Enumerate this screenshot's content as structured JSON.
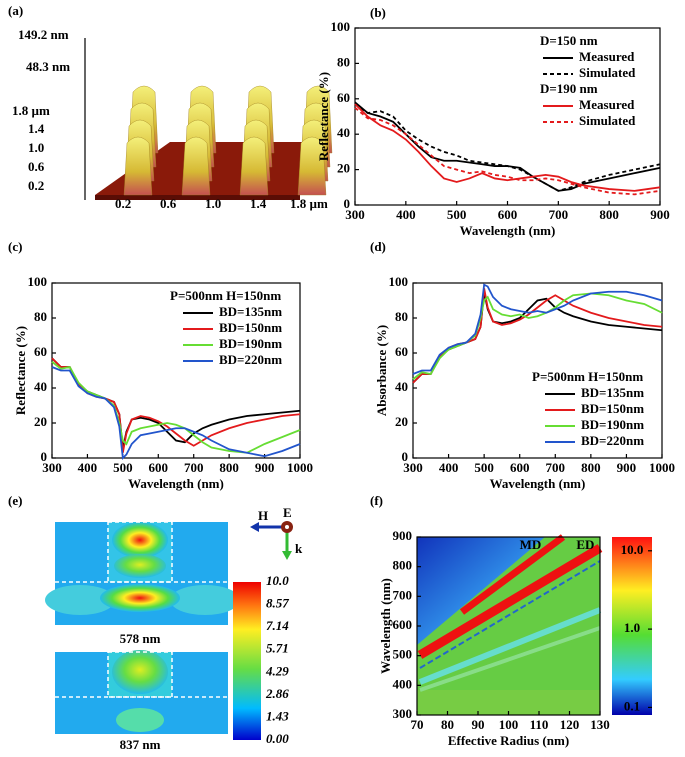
{
  "panel_a": {
    "panel": "(a)",
    "z_labels": [
      "149.2 nm",
      "48.3 nm"
    ],
    "y_labels": [
      "1.8 µm",
      "1.4",
      "1.0",
      "0.6",
      "0.2"
    ],
    "x_labels": [
      "0.2",
      "0.6",
      "1.0",
      "1.4",
      "1.8 µm"
    ]
  },
  "panel_e": {
    "panel": "(e)",
    "captions": [
      "578 nm",
      "837 nm"
    ],
    "colorbar_labels": [
      "10.0",
      "8.57",
      "7.14",
      "5.71",
      "4.29",
      "2.86",
      "1.43",
      "0.00"
    ],
    "axis_labels": [
      "H",
      "E",
      "k"
    ]
  },
  "chart_data": [
    {
      "type": "line",
      "panel": "(b)",
      "xlabel": "Wavelength (nm)",
      "ylabel": "Reflectance (%)",
      "x": [
        300,
        325,
        350,
        375,
        400,
        425,
        450,
        475,
        500,
        525,
        550,
        575,
        600,
        625,
        650,
        675,
        700,
        725,
        750,
        800,
        850,
        900
      ],
      "series": [
        {
          "name": "Measured",
          "group": "D=150 nm",
          "color": "#000000",
          "linestyle": "solid",
          "values": [
            58,
            52,
            50,
            47,
            40,
            33,
            27,
            25,
            25,
            24,
            23,
            22,
            22,
            21,
            16,
            12,
            8,
            9,
            12,
            15,
            18,
            21
          ]
        },
        {
          "name": "Simulated",
          "color": "#000000",
          "linestyle": "dashed",
          "values": [
            57,
            52,
            53,
            50,
            42,
            37,
            33,
            30,
            28,
            25,
            24,
            23,
            22,
            20,
            16,
            12,
            8,
            10,
            13,
            17,
            20,
            23
          ]
        },
        {
          "name": "Measured",
          "group": "D=190 nm",
          "color": "#e31a1c",
          "linestyle": "solid",
          "values": [
            57,
            50,
            45,
            42,
            37,
            30,
            22,
            15,
            13,
            15,
            18,
            15,
            14,
            15,
            16,
            17,
            16,
            13,
            11,
            9,
            8,
            10
          ]
        },
        {
          "name": "Simulated",
          "color": "#e31a1c",
          "linestyle": "dashed",
          "values": [
            55,
            49,
            48,
            45,
            40,
            34,
            28,
            22,
            20,
            18,
            19,
            17,
            16,
            14,
            14,
            15,
            14,
            12,
            10,
            7,
            6,
            8
          ]
        }
      ],
      "xlim": [
        300,
        900
      ],
      "xticks": [
        300,
        400,
        500,
        600,
        700,
        800,
        900
      ],
      "ylim": [
        0,
        100
      ],
      "yticks": [
        0,
        20,
        40,
        60,
        80,
        100
      ],
      "legend": "upper right"
    },
    {
      "type": "line",
      "panel": "(c)",
      "xlabel": "Wavelength (nm)",
      "ylabel": "Reflectance (%)",
      "annotation": "P=500nm H=150nm",
      "x": [
        300,
        325,
        350,
        375,
        400,
        425,
        450,
        475,
        490,
        500,
        510,
        525,
        550,
        575,
        600,
        625,
        650,
        675,
        700,
        725,
        750,
        800,
        850,
        900,
        950,
        1000
      ],
      "series": [
        {
          "name": "BD=135nm",
          "color": "#000000",
          "values": [
            57,
            52,
            52,
            42,
            38,
            36,
            34,
            32,
            25,
            5,
            15,
            22,
            23,
            22,
            20,
            15,
            10,
            9,
            14,
            17,
            19,
            22,
            24,
            25,
            26,
            27
          ]
        },
        {
          "name": "BD=150nm",
          "color": "#e31a1c",
          "values": [
            57,
            52,
            52,
            42,
            37,
            35,
            34,
            32,
            25,
            3,
            14,
            22,
            24,
            23,
            21,
            18,
            14,
            10,
            7,
            10,
            13,
            17,
            20,
            22,
            24,
            25
          ]
        },
        {
          "name": "BD=190nm",
          "color": "#66dd33",
          "values": [
            55,
            51,
            52,
            43,
            38,
            36,
            34,
            30,
            20,
            10,
            8,
            15,
            17,
            18,
            19,
            20,
            19,
            17,
            13,
            9,
            6,
            4,
            3,
            8,
            12,
            16
          ]
        },
        {
          "name": "BD=220nm",
          "color": "#2255cc",
          "values": [
            52,
            50,
            50,
            41,
            37,
            35,
            34,
            29,
            18,
            0,
            2,
            8,
            13,
            14,
            15,
            16,
            17,
            17,
            15,
            13,
            10,
            5,
            3,
            1,
            4,
            8
          ]
        }
      ],
      "xlim": [
        300,
        1000
      ],
      "xticks": [
        300,
        400,
        500,
        600,
        700,
        800,
        900,
        1000
      ],
      "ylim": [
        0,
        100
      ],
      "yticks": [
        0,
        20,
        40,
        60,
        80,
        100
      ],
      "legend": "upper right"
    },
    {
      "type": "line",
      "panel": "(d)",
      "xlabel": "Wavelength (nm)",
      "ylabel": "Absorbance (%)",
      "annotation": "P=500nm H=150nm",
      "x": [
        300,
        325,
        350,
        375,
        400,
        425,
        450,
        475,
        490,
        500,
        510,
        525,
        550,
        575,
        600,
        625,
        650,
        675,
        700,
        725,
        750,
        800,
        850,
        900,
        950,
        1000
      ],
      "series": [
        {
          "name": "BD=135nm",
          "color": "#000000",
          "values": [
            43,
            48,
            48,
            58,
            62,
            64,
            66,
            68,
            75,
            95,
            85,
            78,
            77,
            78,
            80,
            85,
            90,
            91,
            86,
            83,
            81,
            78,
            76,
            75,
            74,
            73
          ]
        },
        {
          "name": "BD=150nm",
          "color": "#e31a1c",
          "values": [
            43,
            48,
            48,
            58,
            63,
            65,
            66,
            68,
            75,
            97,
            86,
            78,
            76,
            77,
            79,
            82,
            86,
            90,
            93,
            90,
            87,
            83,
            80,
            78,
            76,
            75
          ]
        },
        {
          "name": "BD=190nm",
          "color": "#66dd33",
          "values": [
            45,
            49,
            48,
            57,
            62,
            64,
            66,
            70,
            80,
            90,
            92,
            85,
            82,
            81,
            82,
            80,
            81,
            83,
            86,
            90,
            93,
            94,
            93,
            90,
            88,
            83
          ]
        },
        {
          "name": "BD=220nm",
          "color": "#2255cc",
          "values": [
            48,
            50,
            50,
            59,
            63,
            65,
            66,
            71,
            82,
            99,
            98,
            92,
            87,
            85,
            84,
            83,
            84,
            83,
            85,
            87,
            90,
            94,
            95,
            95,
            93,
            90
          ]
        }
      ],
      "xlim": [
        300,
        1000
      ],
      "xticks": [
        300,
        400,
        500,
        600,
        700,
        800,
        900,
        1000
      ],
      "ylim": [
        0,
        100
      ],
      "yticks": [
        0,
        20,
        40,
        60,
        80,
        100
      ],
      "legend": "lower right"
    },
    {
      "type": "heatmap",
      "panel": "(f)",
      "xlabel": "Effective Radius (nm)",
      "ylabel": "Wavelength (nm)",
      "annotations": [
        "MD",
        "ED"
      ],
      "xlim": [
        70,
        130
      ],
      "xticks": [
        70,
        80,
        90,
        100,
        110,
        120,
        130
      ],
      "ylim": [
        300,
        900
      ],
      "yticks": [
        300,
        400,
        500,
        600,
        700,
        800,
        900
      ],
      "colorbar_scale": "log",
      "clim": [
        0.08,
        15
      ],
      "colorbar_ticks": [
        0.1,
        {
          "value": 1,
          "label": "1.0"
        },
        {
          "value": 10,
          "label": "10.0"
        }
      ]
    }
  ]
}
